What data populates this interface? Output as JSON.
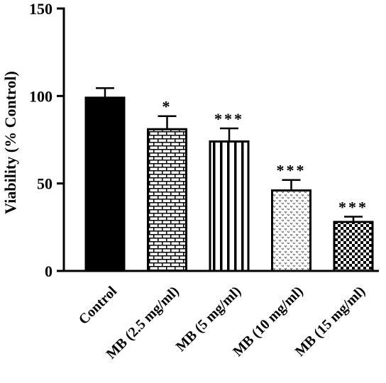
{
  "chart_data": {
    "type": "bar",
    "title": "",
    "xlabel": "",
    "ylabel": "Viability (% Control)",
    "ylim": [
      0,
      150
    ],
    "yticks": [
      "0",
      "50",
      "100",
      "150"
    ],
    "grid": false,
    "legend": "none",
    "categories": [
      "Control",
      "MB (2.5 mg/ml)",
      "MB (5 mg/ml)",
      "MB (10 mg/ml)",
      "MB (15 mg/ml)"
    ],
    "values": [
      99,
      81,
      74,
      46,
      28
    ],
    "errors": [
      5.5,
      7.5,
      7.5,
      6,
      3
    ],
    "significance": [
      "",
      "*",
      "***",
      "***",
      "***"
    ],
    "patterns": [
      "solid",
      "brick",
      "vertical-stripes",
      "dots",
      "checker"
    ],
    "colors": {
      "ink": "#000000",
      "background": "#ffffff"
    }
  }
}
